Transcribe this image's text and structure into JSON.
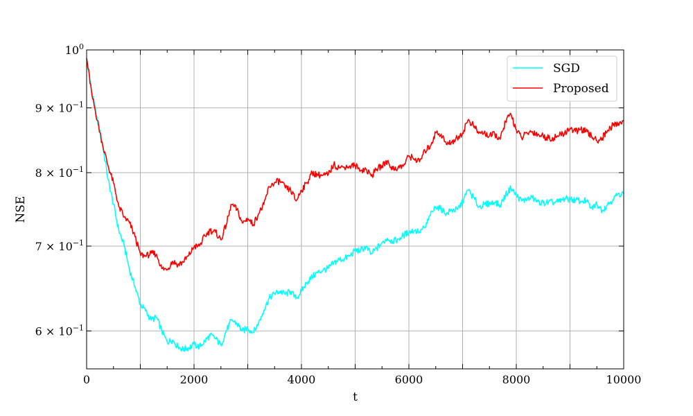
{
  "chart_data": {
    "type": "line",
    "title": "",
    "xlabel": "t",
    "ylabel": "NSE",
    "xlim": [
      0,
      10000
    ],
    "ylim": [
      0.56,
      1.0
    ],
    "yscale": "log",
    "grid": true,
    "legend_position": "top-right",
    "x_ticks": [
      0,
      1000,
      2000,
      3000,
      4000,
      5000,
      6000,
      7000,
      8000,
      9000,
      10000
    ],
    "x_tick_labels": [
      "0",
      "",
      "2000",
      "",
      "4000",
      "",
      "6000",
      "",
      "8000",
      "",
      "10000"
    ],
    "y_ticks": [
      {
        "value": 0.6,
        "mantissa": "6",
        "exp": "−1"
      },
      {
        "value": 0.7,
        "mantissa": "7",
        "exp": "−1"
      },
      {
        "value": 0.8,
        "mantissa": "8",
        "exp": "−1"
      },
      {
        "value": 0.9,
        "mantissa": "9",
        "exp": "−1"
      },
      {
        "value": 1.0,
        "mantissa": "",
        "exp": "0"
      }
    ],
    "series": [
      {
        "name": "SGD",
        "color": "#00ffff",
        "x": [
          0,
          100,
          200,
          300,
          400,
          500,
          600,
          700,
          800,
          900,
          1000,
          1100,
          1200,
          1300,
          1400,
          1500,
          1600,
          1700,
          1800,
          1900,
          2000,
          2100,
          2200,
          2300,
          2400,
          2500,
          2600,
          2700,
          2800,
          2900,
          3000,
          3100,
          3200,
          3300,
          3400,
          3500,
          3600,
          3700,
          3800,
          3900,
          4000,
          4100,
          4200,
          4300,
          4400,
          4500,
          4600,
          4700,
          4800,
          4900,
          5000,
          5100,
          5200,
          5300,
          5400,
          5500,
          5600,
          5700,
          5800,
          5900,
          6000,
          6100,
          6200,
          6300,
          6400,
          6500,
          6600,
          6700,
          6800,
          6900,
          7000,
          7100,
          7200,
          7300,
          7400,
          7500,
          7600,
          7700,
          7800,
          7900,
          8000,
          8100,
          8200,
          8300,
          8400,
          8500,
          8600,
          8700,
          8800,
          8900,
          9000,
          9100,
          9200,
          9300,
          9400,
          9500,
          9600,
          9700,
          9800,
          9900,
          10000
        ],
        "y": [
          0.985,
          0.925,
          0.88,
          0.84,
          0.79,
          0.755,
          0.72,
          0.7,
          0.67,
          0.65,
          0.63,
          0.622,
          0.612,
          0.615,
          0.6,
          0.588,
          0.59,
          0.583,
          0.58,
          0.582,
          0.585,
          0.583,
          0.589,
          0.595,
          0.592,
          0.585,
          0.6,
          0.612,
          0.608,
          0.6,
          0.603,
          0.598,
          0.608,
          0.623,
          0.637,
          0.642,
          0.645,
          0.641,
          0.645,
          0.636,
          0.645,
          0.655,
          0.662,
          0.667,
          0.67,
          0.672,
          0.679,
          0.683,
          0.684,
          0.688,
          0.694,
          0.695,
          0.699,
          0.69,
          0.697,
          0.704,
          0.71,
          0.706,
          0.709,
          0.714,
          0.718,
          0.72,
          0.719,
          0.724,
          0.74,
          0.752,
          0.749,
          0.743,
          0.747,
          0.748,
          0.758,
          0.775,
          0.765,
          0.752,
          0.755,
          0.756,
          0.758,
          0.754,
          0.768,
          0.778,
          0.768,
          0.76,
          0.762,
          0.764,
          0.759,
          0.757,
          0.758,
          0.758,
          0.759,
          0.763,
          0.762,
          0.761,
          0.76,
          0.76,
          0.75,
          0.756,
          0.747,
          0.755,
          0.762,
          0.77,
          0.77
        ]
      },
      {
        "name": "Proposed",
        "color": "#ff0000",
        "x": [
          0,
          100,
          200,
          300,
          400,
          500,
          600,
          700,
          800,
          900,
          1000,
          1100,
          1200,
          1300,
          1400,
          1500,
          1600,
          1700,
          1800,
          1900,
          2000,
          2100,
          2200,
          2300,
          2400,
          2500,
          2600,
          2700,
          2800,
          2900,
          3000,
          3100,
          3200,
          3300,
          3400,
          3500,
          3600,
          3700,
          3800,
          3900,
          4000,
          4100,
          4200,
          4300,
          4400,
          4500,
          4600,
          4700,
          4800,
          4900,
          5000,
          5100,
          5200,
          5300,
          5400,
          5500,
          5600,
          5700,
          5800,
          5900,
          6000,
          6100,
          6200,
          6300,
          6400,
          6500,
          6600,
          6700,
          6800,
          6900,
          7000,
          7100,
          7200,
          7300,
          7400,
          7500,
          7600,
          7700,
          7800,
          7900,
          8000,
          8100,
          8200,
          8300,
          8400,
          8500,
          8600,
          8700,
          8800,
          8900,
          9000,
          9100,
          9200,
          9300,
          9400,
          9500,
          9600,
          9700,
          9800,
          9900,
          10000
        ],
        "y": [
          0.985,
          0.92,
          0.88,
          0.84,
          0.81,
          0.785,
          0.752,
          0.738,
          0.73,
          0.712,
          0.69,
          0.687,
          0.691,
          0.69,
          0.672,
          0.671,
          0.681,
          0.677,
          0.68,
          0.688,
          0.699,
          0.7,
          0.713,
          0.72,
          0.718,
          0.708,
          0.728,
          0.755,
          0.748,
          0.73,
          0.736,
          0.728,
          0.742,
          0.755,
          0.78,
          0.786,
          0.788,
          0.778,
          0.775,
          0.76,
          0.775,
          0.785,
          0.8,
          0.797,
          0.796,
          0.797,
          0.812,
          0.807,
          0.808,
          0.81,
          0.811,
          0.803,
          0.805,
          0.795,
          0.805,
          0.81,
          0.817,
          0.805,
          0.808,
          0.81,
          0.825,
          0.82,
          0.816,
          0.832,
          0.84,
          0.86,
          0.858,
          0.842,
          0.846,
          0.852,
          0.86,
          0.88,
          0.872,
          0.859,
          0.86,
          0.855,
          0.858,
          0.85,
          0.878,
          0.89,
          0.865,
          0.852,
          0.86,
          0.862,
          0.858,
          0.855,
          0.852,
          0.852,
          0.856,
          0.86,
          0.867,
          0.862,
          0.866,
          0.862,
          0.855,
          0.848,
          0.852,
          0.864,
          0.872,
          0.875,
          0.88
        ]
      }
    ]
  }
}
